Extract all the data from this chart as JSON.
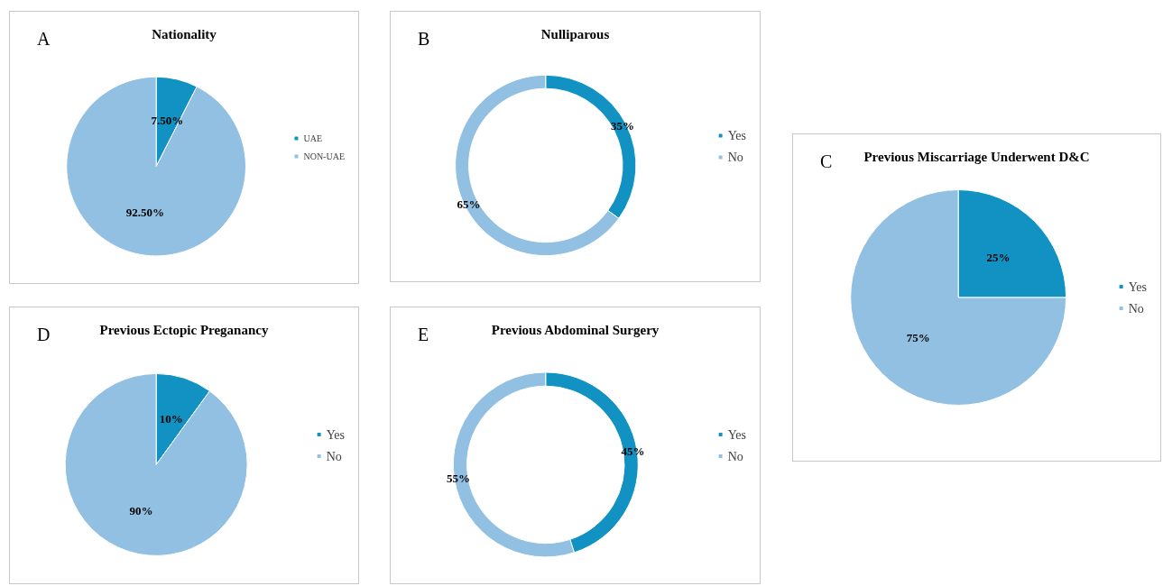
{
  "chart_data": [
    {
      "type": "pie",
      "title": "Nationality",
      "annotations": [
        "A"
      ],
      "categories": [
        "UAE",
        "NON-UAE"
      ],
      "values": [
        7.5,
        92.5
      ],
      "colors": [
        "#1192c2",
        "#92c0e2"
      ],
      "value_labels": [
        "7.50%",
        "92.50%"
      ],
      "legend": "right"
    },
    {
      "type": "donut",
      "title": "Nulliparous",
      "annotations": [
        "B"
      ],
      "categories": [
        "Yes",
        "No"
      ],
      "values": [
        35,
        65
      ],
      "colors": [
        "#1192c2",
        "#92c0e2"
      ],
      "value_labels": [
        "35%",
        "65%"
      ],
      "legend": "right"
    },
    {
      "type": "pie",
      "title": "Previous Miscarriage Underwent D&C",
      "annotations": [
        "C"
      ],
      "categories": [
        "Yes",
        "No"
      ],
      "values": [
        25,
        75
      ],
      "colors": [
        "#1192c2",
        "#92c0e2"
      ],
      "value_labels": [
        "25%",
        "75%"
      ],
      "legend": "right"
    },
    {
      "type": "pie",
      "title": "Previous Ectopic Preganancy",
      "annotations": [
        "D"
      ],
      "categories": [
        "Yes",
        "No"
      ],
      "values": [
        10,
        90
      ],
      "colors": [
        "#1192c2",
        "#92c0e2"
      ],
      "value_labels": [
        "10%",
        "90%"
      ],
      "legend": "right"
    },
    {
      "type": "donut",
      "title": "Previous Abdominal Surgery",
      "annotations": [
        "E"
      ],
      "categories": [
        "Yes",
        "No"
      ],
      "values": [
        45,
        55
      ],
      "colors": [
        "#1192c2",
        "#92c0e2"
      ],
      "value_labels": [
        "45%",
        "55%"
      ],
      "legend": "right"
    }
  ]
}
